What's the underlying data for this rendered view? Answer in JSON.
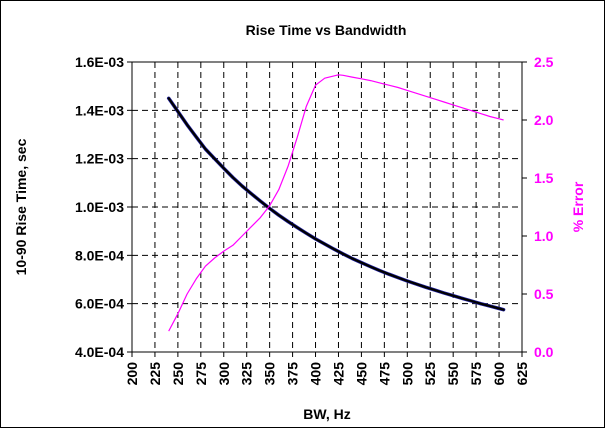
{
  "chart_data": {
    "type": "line",
    "title": "Rise Time vs Bandwidth",
    "xlabel": "BW,  Hz",
    "ylabel": "10-90 Rise Time, sec",
    "y2label": "% Error",
    "xlim": [
      200,
      625
    ],
    "ylim": [
      0.0004,
      0.0016
    ],
    "y2lim": [
      0.0,
      2.5
    ],
    "x_ticks": [
      "200",
      "225",
      "250",
      "275",
      "300",
      "325",
      "350",
      "375",
      "400",
      "425",
      "450",
      "475",
      "500",
      "525",
      "550",
      "575",
      "600",
      "625"
    ],
    "y_ticks": [
      "4.0E-04",
      "6.0E-04",
      "8.0E-04",
      "1.0E-03",
      "1.2E-03",
      "1.4E-03",
      "1.6E-03"
    ],
    "y2_ticks": [
      "0.0",
      "0.5",
      "1.0",
      "1.5",
      "2.0",
      "2.5"
    ],
    "grid": true,
    "colors": {
      "rise_time": "#000000",
      "rise_time_blue": "#2020a0",
      "error": "#ff00ff",
      "border": "#000000"
    },
    "series": [
      {
        "axis": "left",
        "x": [
          240,
          250,
          260,
          270,
          280,
          290,
          300,
          310,
          320,
          330,
          340,
          350,
          360,
          370,
          380,
          390,
          400,
          410,
          420,
          430,
          440,
          450,
          460,
          470,
          480,
          490,
          500,
          510,
          520,
          530,
          540,
          550,
          560,
          570,
          580,
          590,
          600,
          605
        ],
        "values": [
          0.00145,
          0.001395,
          0.00134,
          0.00129,
          0.00124,
          0.0012,
          0.00116,
          0.001122,
          0.001087,
          0.001055,
          0.001024,
          0.000994,
          0.000966,
          0.00094,
          0.000915,
          0.000891,
          0.000868,
          0.000847,
          0.000826,
          0.000806,
          0.000787,
          0.00077,
          0.000753,
          0.000737,
          0.000722,
          0.000708,
          0.000694,
          0.000681,
          0.000668,
          0.000656,
          0.000644,
          0.000633,
          0.000622,
          0.000611,
          0.0006,
          0.00059,
          0.00058,
          0.000575
        ]
      },
      {
        "axis": "right",
        "x": [
          240,
          250,
          260,
          270,
          280,
          290,
          300,
          310,
          320,
          330,
          340,
          350,
          360,
          370,
          380,
          390,
          400,
          410,
          420,
          425,
          430,
          440,
          450,
          460,
          470,
          480,
          490,
          500,
          510,
          520,
          530,
          540,
          550,
          560,
          570,
          580,
          590,
          600,
          605
        ],
        "values": [
          0.18,
          0.33,
          0.5,
          0.63,
          0.74,
          0.81,
          0.87,
          0.92,
          1.0,
          1.08,
          1.16,
          1.26,
          1.4,
          1.6,
          1.85,
          2.12,
          2.3,
          2.36,
          2.38,
          2.39,
          2.385,
          2.37,
          2.355,
          2.34,
          2.32,
          2.3,
          2.28,
          2.255,
          2.23,
          2.205,
          2.18,
          2.155,
          2.13,
          2.105,
          2.08,
          2.055,
          2.03,
          2.01,
          2.0
        ]
      }
    ]
  }
}
